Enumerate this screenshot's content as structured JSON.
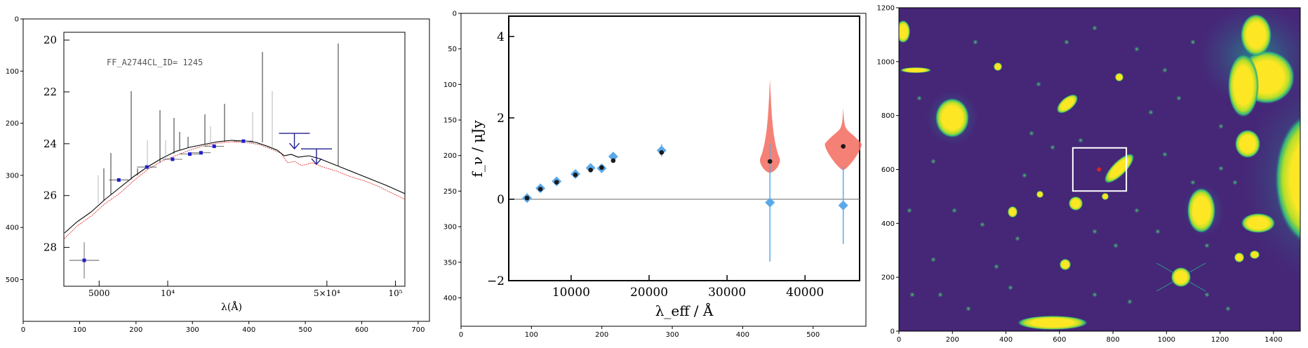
{
  "chart_data": [
    {
      "type": "scatter",
      "panel": "image-of-sed-plot",
      "outer_axes": {
        "x_ticks": [
          0,
          100,
          200,
          300,
          400,
          500,
          600,
          700
        ],
        "y_ticks": [
          0,
          100,
          200,
          300,
          400,
          500
        ],
        "xlim": [
          0,
          720
        ],
        "ylim": [
          580,
          0
        ]
      },
      "embedded_plot": {
        "label": "FF_A2744CL_ID= 1245",
        "xlabel": "λ(Å)",
        "x_tick_labels": [
          "5000",
          "10⁴",
          "5×10⁴",
          "10⁵"
        ],
        "y_tick_labels": [
          "20",
          "22",
          "24",
          "26",
          "28"
        ],
        "xlim": [
          3500,
          110000
        ],
        "ylim": [
          29.5,
          19.7
        ],
        "x_scale": "log",
        "photometry": [
          {
            "x": 4300,
            "y": 28.5,
            "xerr_lo": 600,
            "xerr_hi": 700,
            "yerr": 0.7
          },
          {
            "x": 6100,
            "y": 25.4
          },
          {
            "x": 8100,
            "y": 24.9
          },
          {
            "x": 10500,
            "y": 24.6
          },
          {
            "x": 12500,
            "y": 24.4
          },
          {
            "x": 14000,
            "y": 24.35
          },
          {
            "x": 16000,
            "y": 24.1
          },
          {
            "x": 21500,
            "y": 23.9
          }
        ],
        "upper_limits": [
          {
            "x": 36000,
            "y": 23.6
          },
          {
            "x": 45000,
            "y": 24.2
          }
        ]
      }
    },
    {
      "type": "scatter",
      "panel": "flux-panel",
      "outer_axes": {
        "x_ticks": [
          0,
          100,
          200,
          300,
          400,
          500
        ],
        "y_ticks": [
          0,
          50,
          100,
          150,
          200,
          250,
          300,
          350,
          400
        ],
        "xlim": [
          0,
          575
        ],
        "ylim": [
          440,
          0
        ]
      },
      "embedded_plot": {
        "xlabel": "λ_eff / Å",
        "ylabel": "f_ν / μJy",
        "xlim": [
          2000,
          47000
        ],
        "ylim": [
          -2,
          4.5
        ],
        "x_ticks": [
          10000,
          20000,
          30000,
          40000
        ],
        "y_ticks": [
          -2,
          0,
          2,
          4
        ],
        "model_points": [
          {
            "x": 4350,
            "y": 0.03
          },
          {
            "x": 6060,
            "y": 0.25
          },
          {
            "x": 8140,
            "y": 0.42
          },
          {
            "x": 10550,
            "y": 0.6
          },
          {
            "x": 12500,
            "y": 0.72
          },
          {
            "x": 13920,
            "y": 0.78
          },
          {
            "x": 15400,
            "y": 0.95
          },
          {
            "x": 21600,
            "y": 1.15
          },
          {
            "x": 35500,
            "y": 0.93
          },
          {
            "x": 44900,
            "y": 1.3
          }
        ],
        "observed_points": [
          {
            "x": 4350,
            "y": 0.03
          },
          {
            "x": 6060,
            "y": 0.27
          },
          {
            "x": 8140,
            "y": 0.44
          },
          {
            "x": 10550,
            "y": 0.62
          },
          {
            "x": 12500,
            "y": 0.77
          },
          {
            "x": 13920,
            "y": 0.76
          },
          {
            "x": 15400,
            "y": 1.05
          },
          {
            "x": 21600,
            "y": 1.2,
            "yerr": 0.15
          },
          {
            "x": 35500,
            "y": -0.08,
            "yerr": 1.45
          },
          {
            "x": 44900,
            "y": -0.15,
            "yerr": 0.95
          }
        ],
        "violins": [
          {
            "x": 35500,
            "ymin": 0.65,
            "ymax": 2.95,
            "peak": 0.93
          },
          {
            "x": 44900,
            "ymin": 0.72,
            "ymax": 2.25,
            "peak": 1.3
          }
        ],
        "colors": {
          "model": "#1a1a1a",
          "observed": "#5aa9ea",
          "violin": "#f36b5e"
        }
      }
    },
    {
      "type": "heatmap",
      "panel": "image-cutout",
      "outer_axes": {
        "x_ticks": [
          0,
          200,
          400,
          600,
          800,
          1000,
          1200,
          1400
        ],
        "y_ticks": [
          0,
          200,
          400,
          600,
          800,
          1000,
          1200
        ],
        "xlim": [
          0,
          1500
        ],
        "ylim": [
          0,
          1200
        ]
      },
      "selection_box": {
        "x0": 650,
        "x1": 850,
        "y0": 520,
        "y1": 680
      },
      "marker": {
        "x": 748,
        "y": 600
      },
      "colormap": "viridis"
    }
  ]
}
